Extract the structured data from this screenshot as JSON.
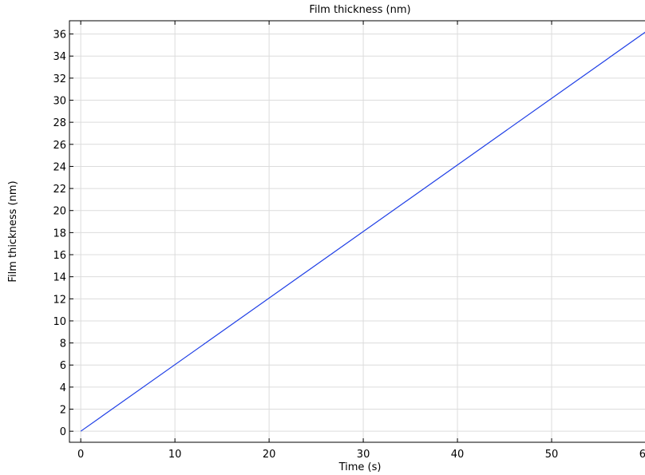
{
  "chart_data": {
    "type": "line",
    "title": "Film thickness (nm)",
    "xlabel": "Time (s)",
    "ylabel": "Film thickness (nm)",
    "xlim": [
      -1.2,
      60
    ],
    "ylim": [
      -1.0,
      37.2
    ],
    "xticks": [
      0,
      10,
      20,
      30,
      40,
      50,
      60
    ],
    "yticks": [
      0,
      2,
      4,
      6,
      8,
      10,
      12,
      14,
      16,
      18,
      20,
      22,
      24,
      26,
      28,
      30,
      32,
      34,
      36
    ],
    "grid": true,
    "legend": "none",
    "series": [
      {
        "color": "#1f3fe6",
        "x": [
          0,
          60
        ],
        "y": [
          0,
          36.2
        ]
      }
    ]
  },
  "colors": {
    "line": "#1f3fe6",
    "grid": "#dcdcdc",
    "axis": "#000000",
    "background": "#ffffff"
  }
}
